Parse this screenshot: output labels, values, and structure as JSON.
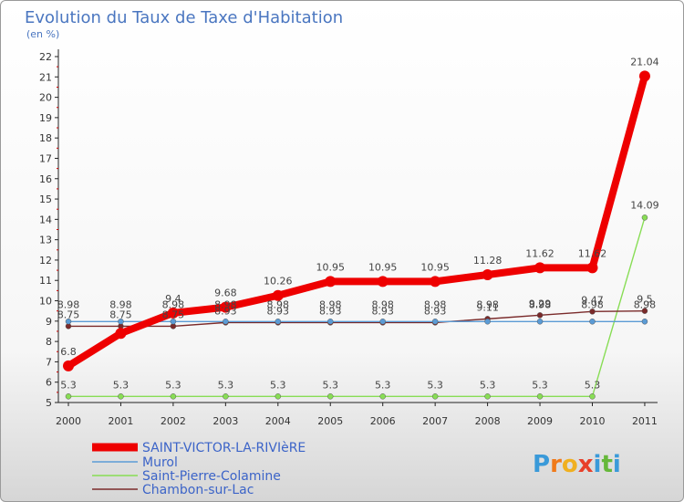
{
  "chart_data": {
    "type": "line",
    "title": "Evolution du Taux de Taxe d'Habitation",
    "subtitle": "(en %)",
    "x": [
      "2000",
      "2001",
      "2002",
      "2003",
      "2004",
      "2005",
      "2006",
      "2007",
      "2008",
      "2009",
      "2010",
      "2011"
    ],
    "y_ticks": [
      "5",
      "6",
      "7",
      "8",
      "9",
      "10",
      "11",
      "12",
      "13",
      "14",
      "15",
      "16",
      "17",
      "18",
      "19",
      "20",
      "21",
      "22"
    ],
    "ylim": [
      5,
      22
    ],
    "series": [
      {
        "name": "SAINT-VICTOR-LA-RIVIèRE",
        "color": "#ee0000",
        "values": [
          6.8,
          8.4,
          9.4,
          9.68,
          10.26,
          10.95,
          10.95,
          10.95,
          11.28,
          11.62,
          11.62,
          21.04
        ],
        "labels": [
          "6.8",
          "",
          "9.4",
          "9.68",
          "10.26",
          "10.95",
          "10.95",
          "10.95",
          "11.28",
          "11.62",
          "11.62",
          "21.04"
        ]
      },
      {
        "name": "Murol",
        "color": "#5b9bd5",
        "values": [
          8.98,
          8.98,
          8.98,
          8.98,
          8.98,
          8.98,
          8.98,
          8.98,
          8.98,
          8.98,
          8.98,
          8.98
        ],
        "labels": [
          "8.98",
          "8.98",
          "8.98",
          "8.98",
          "8.98",
          "8.98",
          "8.98",
          "8.98",
          "8.98",
          "8.98",
          "8.98",
          "8.98"
        ]
      },
      {
        "name": "Saint-Pierre-Colamine",
        "color": "#88dd55",
        "values": [
          5.3,
          5.3,
          5.3,
          5.3,
          5.3,
          5.3,
          5.3,
          5.3,
          5.3,
          5.3,
          5.3,
          14.09
        ],
        "labels": [
          "5.3",
          "5.3",
          "5.3",
          "5.3",
          "5.3",
          "5.3",
          "5.3",
          "5.3",
          "5.3",
          "5.3",
          "5.3",
          "14.09"
        ]
      },
      {
        "name": "Chambon-sur-Lac",
        "color": "#7a2a2a",
        "values": [
          8.75,
          8.75,
          8.75,
          8.93,
          8.93,
          8.93,
          8.93,
          8.93,
          9.11,
          9.29,
          9.47,
          9.5
        ],
        "labels": [
          "8.75",
          "8.75",
          "8.75",
          "8.93",
          "8.93",
          "8.93",
          "8.93",
          "8.93",
          "9.11",
          "9.29",
          "9.47",
          "9.5"
        ]
      }
    ]
  },
  "logo": {
    "letters": [
      "P",
      "r",
      "o",
      "x",
      "i",
      "t",
      "i"
    ],
    "colors": [
      "#3a9ad9",
      "#f07a1a",
      "#f0b020",
      "#e8402a",
      "#3a9ad9",
      "#66b83a",
      "#3a9ad9"
    ]
  }
}
